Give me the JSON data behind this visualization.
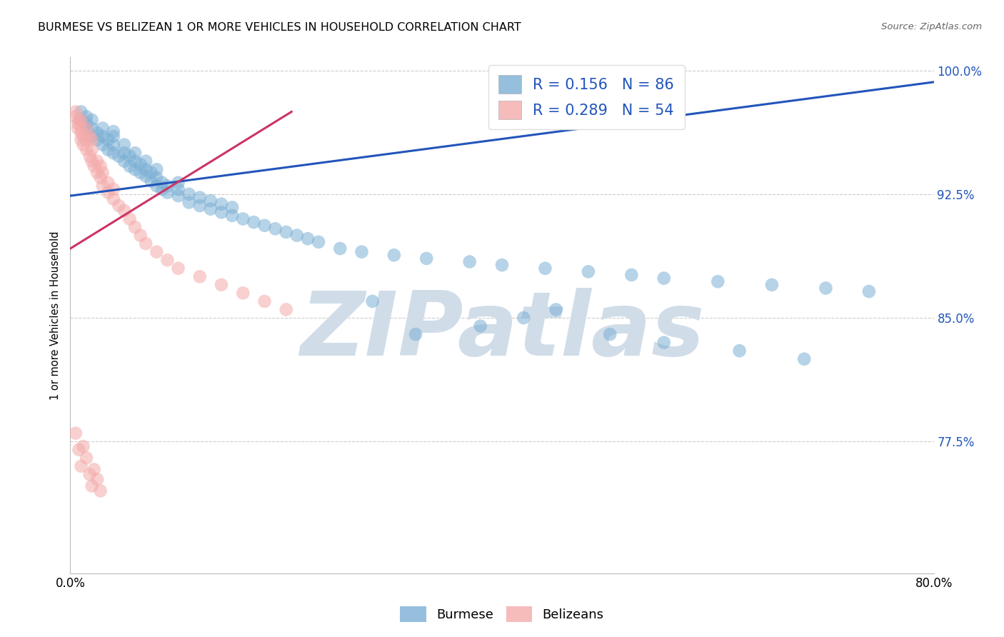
{
  "title": "BURMESE VS BELIZEAN 1 OR MORE VEHICLES IN HOUSEHOLD CORRELATION CHART",
  "source": "Source: ZipAtlas.com",
  "ylabel": "1 or more Vehicles in Household",
  "xlim": [
    0.0,
    0.8
  ],
  "ylim": [
    0.695,
    1.008
  ],
  "yticks": [
    0.775,
    0.85,
    0.925,
    1.0
  ],
  "yticklabels": [
    "77.5%",
    "85.0%",
    "92.5%",
    "100.0%"
  ],
  "xtick_positions": [
    0.0,
    0.1,
    0.2,
    0.3,
    0.4,
    0.5,
    0.6,
    0.7,
    0.8
  ],
  "xticklabels": [
    "0.0%",
    "",
    "",
    "",
    "",
    "",
    "",
    "",
    "80.0%"
  ],
  "burmese_color": "#7BAFD4",
  "belizean_color": "#F4AAAA",
  "burmese_line_color": "#2255BB",
  "belizean_line_color": "#CC3366",
  "R_burmese": 0.156,
  "N_burmese": 86,
  "R_belizean": 0.289,
  "N_belizean": 54,
  "grid_color": "#CCCCCC",
  "background_color": "#FFFFFF",
  "watermark_color": "#D0DDE8",
  "title_fontsize": 11.5,
  "burmese_trendline_x": [
    0.0,
    0.8
  ],
  "burmese_trendline_y": [
    0.924,
    0.993
  ],
  "belizean_trendline_x": [
    0.0,
    0.205
  ],
  "belizean_trendline_y": [
    0.892,
    0.975
  ],
  "burmese_x": [
    0.01,
    0.01,
    0.015,
    0.015,
    0.015,
    0.02,
    0.02,
    0.02,
    0.025,
    0.025,
    0.03,
    0.03,
    0.03,
    0.035,
    0.035,
    0.04,
    0.04,
    0.04,
    0.04,
    0.045,
    0.05,
    0.05,
    0.05,
    0.055,
    0.055,
    0.06,
    0.06,
    0.06,
    0.065,
    0.065,
    0.07,
    0.07,
    0.07,
    0.075,
    0.075,
    0.08,
    0.08,
    0.08,
    0.085,
    0.085,
    0.09,
    0.09,
    0.1,
    0.1,
    0.1,
    0.11,
    0.11,
    0.12,
    0.12,
    0.13,
    0.13,
    0.14,
    0.14,
    0.15,
    0.15,
    0.16,
    0.17,
    0.18,
    0.19,
    0.2,
    0.21,
    0.22,
    0.23,
    0.25,
    0.27,
    0.3,
    0.33,
    0.37,
    0.4,
    0.44,
    0.48,
    0.52,
    0.55,
    0.6,
    0.65,
    0.7,
    0.74,
    0.42,
    0.32,
    0.28,
    0.38,
    0.45,
    0.5,
    0.55,
    0.62,
    0.68
  ],
  "burmese_y": [
    0.975,
    0.97,
    0.972,
    0.965,
    0.968,
    0.96,
    0.965,
    0.97,
    0.958,
    0.962,
    0.955,
    0.96,
    0.965,
    0.952,
    0.958,
    0.95,
    0.955,
    0.96,
    0.963,
    0.948,
    0.945,
    0.95,
    0.955,
    0.942,
    0.948,
    0.94,
    0.945,
    0.95,
    0.938,
    0.943,
    0.936,
    0.94,
    0.945,
    0.933,
    0.938,
    0.93,
    0.935,
    0.94,
    0.928,
    0.932,
    0.926,
    0.93,
    0.924,
    0.928,
    0.932,
    0.92,
    0.925,
    0.918,
    0.923,
    0.916,
    0.921,
    0.914,
    0.919,
    0.912,
    0.917,
    0.91,
    0.908,
    0.906,
    0.904,
    0.902,
    0.9,
    0.898,
    0.896,
    0.892,
    0.89,
    0.888,
    0.886,
    0.884,
    0.882,
    0.88,
    0.878,
    0.876,
    0.874,
    0.872,
    0.87,
    0.868,
    0.866,
    0.85,
    0.84,
    0.86,
    0.845,
    0.855,
    0.84,
    0.835,
    0.83,
    0.825
  ],
  "belizean_x": [
    0.005,
    0.005,
    0.007,
    0.007,
    0.008,
    0.01,
    0.01,
    0.01,
    0.01,
    0.012,
    0.012,
    0.015,
    0.015,
    0.015,
    0.018,
    0.018,
    0.02,
    0.02,
    0.02,
    0.022,
    0.025,
    0.025,
    0.028,
    0.028,
    0.03,
    0.03,
    0.035,
    0.035,
    0.04,
    0.04,
    0.045,
    0.05,
    0.055,
    0.06,
    0.065,
    0.07,
    0.08,
    0.09,
    0.1,
    0.12,
    0.14,
    0.16,
    0.18,
    0.2,
    0.005,
    0.008,
    0.01,
    0.012,
    0.015,
    0.018,
    0.02,
    0.022,
    0.025,
    0.028
  ],
  "belizean_y": [
    0.975,
    0.972,
    0.968,
    0.965,
    0.97,
    0.965,
    0.962,
    0.958,
    0.97,
    0.96,
    0.955,
    0.958,
    0.952,
    0.965,
    0.948,
    0.96,
    0.945,
    0.952,
    0.958,
    0.942,
    0.938,
    0.945,
    0.935,
    0.942,
    0.93,
    0.938,
    0.926,
    0.932,
    0.922,
    0.928,
    0.918,
    0.915,
    0.91,
    0.905,
    0.9,
    0.895,
    0.89,
    0.885,
    0.88,
    0.875,
    0.87,
    0.865,
    0.86,
    0.855,
    0.78,
    0.77,
    0.76,
    0.772,
    0.765,
    0.755,
    0.748,
    0.758,
    0.752,
    0.745
  ]
}
